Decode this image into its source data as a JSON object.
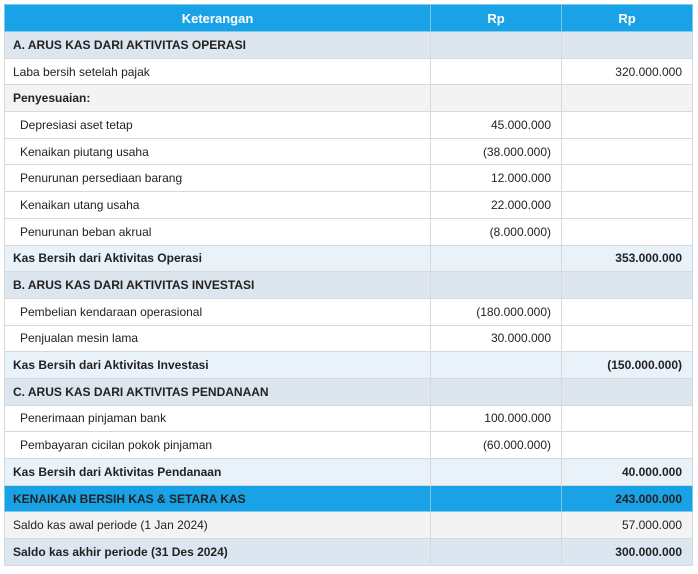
{
  "table": {
    "header": [
      "Keterangan",
      "Rp",
      "Rp"
    ],
    "rows": [
      [
        "A. ARUS KAS DARI AKTIVITAS OPERASI",
        null,
        null
      ],
      [
        "Laba bersih setelah pajak",
        null,
        "320.000.000"
      ],
      [
        "Penyesuaian:",
        null,
        null
      ],
      [
        "Depresiasi aset tetap",
        "45.000.000",
        null
      ],
      [
        "Kenaikan piutang usaha",
        "(38.000.000)",
        null
      ],
      [
        "Penurunan persediaan barang",
        "12.000.000",
        null
      ],
      [
        "Kenaikan utang usaha",
        "22.000.000",
        null
      ],
      [
        "Penurunan beban akrual",
        "(8.000.000)",
        null
      ],
      [
        "Kas Bersih dari Aktivitas Operasi",
        null,
        "353.000.000"
      ],
      [
        "B. ARUS KAS DARI AKTIVITAS INVESTASI",
        null,
        null
      ],
      [
        "Pembelian kendaraan operasional",
        "(180.000.000)",
        null
      ],
      [
        "Penjualan mesin lama",
        "30.000.000",
        null
      ],
      [
        "Kas Bersih dari Aktivitas Investasi",
        null,
        "(150.000.000)"
      ],
      [
        "C. ARUS KAS DARI AKTIVITAS PENDANAAN",
        null,
        null
      ],
      [
        "Penerimaan pinjaman bank",
        "100.000.000",
        null
      ],
      [
        "Pembayaran cicilan pokok pinjaman",
        "(60.000.000)",
        null
      ],
      [
        "Kas Bersih dari Aktivitas Pendanaan",
        null,
        "40.000.000"
      ],
      [
        "KENAIKAN BERSIH KAS & SETARA KAS",
        null,
        "243.000.000"
      ],
      [
        "Saldo kas awal periode (1 Jan 2024)",
        null,
        "57.000.000"
      ],
      [
        "Saldo kas akhir periode (31 Des 2024)",
        null,
        "300.000.000"
      ]
    ]
  }
}
